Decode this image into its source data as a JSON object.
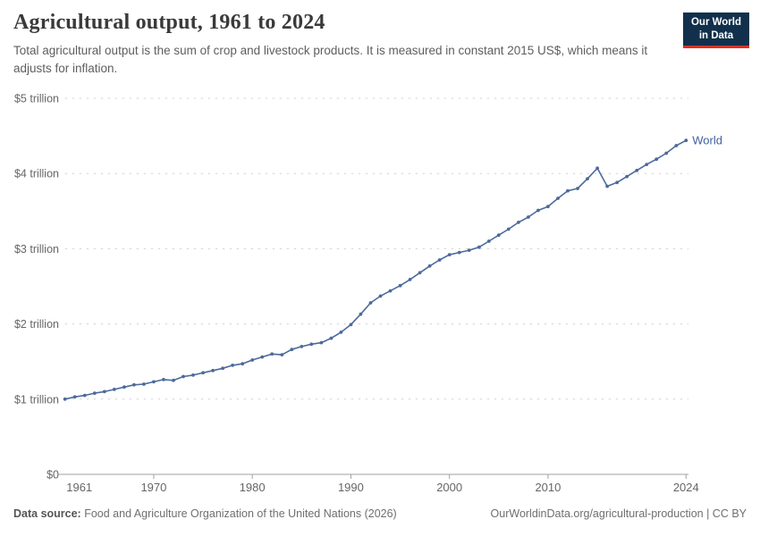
{
  "header": {
    "title": "Agricultural output, 1961 to 2024",
    "subtitle": "Total agricultural output is the sum of crop and livestock products. It is measured in constant 2015 US$, which means it adjusts for inflation."
  },
  "logo": {
    "line1": "Our World",
    "line2": "in Data"
  },
  "chart_data": {
    "type": "line",
    "title": "Agricultural output, 1961 to 2024",
    "ylabel": "",
    "unit": "trillion constant 2015 US$",
    "ylim": [
      0,
      5
    ],
    "grid": "horizontal-dashed",
    "legend_position": "end-of-line",
    "xticks": [
      1961,
      1970,
      1980,
      1990,
      2000,
      2010,
      2024
    ],
    "yticks": [
      {
        "value": 0,
        "label": "$0"
      },
      {
        "value": 1,
        "label": "$1 trillion"
      },
      {
        "value": 2,
        "label": "$2 trillion"
      },
      {
        "value": 3,
        "label": "$3 trillion"
      },
      {
        "value": 4,
        "label": "$4 trillion"
      },
      {
        "value": 5,
        "label": "$5 trillion"
      }
    ],
    "x": [
      1961,
      1962,
      1963,
      1964,
      1965,
      1966,
      1967,
      1968,
      1969,
      1970,
      1971,
      1972,
      1973,
      1974,
      1975,
      1976,
      1977,
      1978,
      1979,
      1980,
      1981,
      1982,
      1983,
      1984,
      1985,
      1986,
      1987,
      1988,
      1989,
      1990,
      1991,
      1992,
      1993,
      1994,
      1995,
      1996,
      1997,
      1998,
      1999,
      2000,
      2001,
      2002,
      2003,
      2004,
      2005,
      2006,
      2007,
      2008,
      2009,
      2010,
      2011,
      2012,
      2013,
      2014,
      2015,
      2016,
      2017,
      2018,
      2019,
      2020,
      2021,
      2022,
      2023,
      2024
    ],
    "series": [
      {
        "name": "World",
        "color": "#4c6a9c",
        "values": [
          1.0,
          1.03,
          1.05,
          1.08,
          1.1,
          1.13,
          1.16,
          1.19,
          1.2,
          1.23,
          1.26,
          1.25,
          1.3,
          1.32,
          1.35,
          1.38,
          1.41,
          1.45,
          1.47,
          1.52,
          1.56,
          1.6,
          1.59,
          1.66,
          1.7,
          1.73,
          1.75,
          1.81,
          1.89,
          1.99,
          2.13,
          2.28,
          2.37,
          2.44,
          2.51,
          2.59,
          2.68,
          2.77,
          2.85,
          2.92,
          2.95,
          2.98,
          3.02,
          3.1,
          3.18,
          3.26,
          3.35,
          3.42,
          3.51,
          3.56,
          3.67,
          3.77,
          3.8,
          3.93,
          4.07,
          3.83,
          3.88,
          3.96,
          4.04,
          4.12,
          4.19,
          4.27,
          4.37,
          4.44
        ]
      }
    ]
  },
  "footer": {
    "source_label": "Data source:",
    "source_text": " Food and Agriculture Organization of the United Nations (2026)",
    "link_text": "OurWorldinData.org/agricultural-production | CC BY"
  },
  "colors": {
    "line": "#4c6a9c",
    "series_label": "#40619e",
    "logo_bg": "#12304c",
    "logo_accent": "#dc3022",
    "axis": "#a1a1a1",
    "grid": "#d4d4d4",
    "tick_text": "#666666"
  }
}
